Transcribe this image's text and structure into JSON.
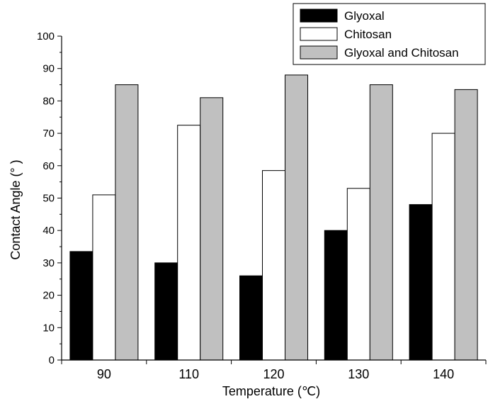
{
  "chart_data": {
    "type": "bar",
    "categories": [
      "90",
      "110",
      "120",
      "130",
      "140"
    ],
    "series": [
      {
        "name": "Glyoxal",
        "values": [
          33.5,
          30,
          26,
          40,
          48
        ],
        "color": "#000000"
      },
      {
        "name": "Chitosan",
        "values": [
          51,
          72.5,
          58.5,
          53,
          70
        ],
        "color": "#ffffff"
      },
      {
        "name": "Glyoxal and Chitosan",
        "values": [
          85,
          81,
          88,
          85,
          83.5
        ],
        "color": "#c0c0c0"
      }
    ],
    "xlabel": "Temperature (℃)",
    "ylabel": "Contact Angle (° )",
    "ylim": [
      0,
      100
    ],
    "yticks": [
      0,
      10,
      20,
      30,
      40,
      50,
      60,
      70,
      80,
      90,
      100
    ],
    "legend_position": "top-right",
    "grid": false
  }
}
